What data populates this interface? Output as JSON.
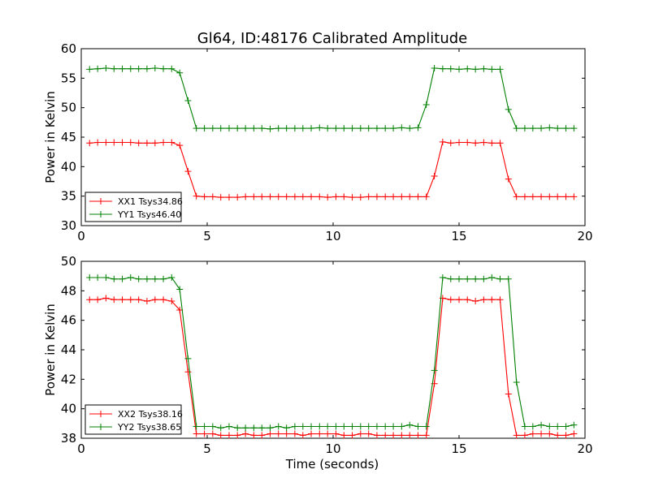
{
  "figure": {
    "title": "Gl64, ID:48176 Calibrated Amplitude",
    "xlabel": "Time (seconds)"
  },
  "chart_data": [
    {
      "type": "line",
      "title": "Gl64, ID:48176 Calibrated Amplitude",
      "xlabel": "",
      "ylabel": "Power in Kelvin",
      "xlim": [
        0,
        20
      ],
      "ylim": [
        30,
        60
      ],
      "xticks": [
        0,
        5,
        10,
        15,
        20
      ],
      "yticks": [
        30,
        35,
        40,
        45,
        50,
        55,
        60
      ],
      "grid": false,
      "legend_position": "lower-left",
      "x": [
        0.33,
        0.65,
        0.98,
        1.3,
        1.63,
        1.96,
        2.28,
        2.61,
        2.93,
        3.26,
        3.59,
        3.91,
        4.24,
        4.57,
        4.89,
        5.22,
        5.54,
        5.87,
        6.2,
        6.52,
        6.85,
        7.17,
        7.5,
        7.83,
        8.15,
        8.48,
        8.8,
        9.13,
        9.46,
        9.78,
        10.11,
        10.43,
        10.76,
        11.09,
        11.41,
        11.74,
        12.07,
        12.39,
        12.72,
        13.04,
        13.37,
        13.7,
        14.02,
        14.35,
        14.67,
        15.0,
        15.33,
        15.65,
        15.98,
        16.3,
        16.63,
        16.96,
        17.28,
        17.61,
        17.93,
        18.26,
        18.59,
        18.91,
        19.24,
        19.56
      ],
      "series": [
        {
          "name": "XX1 Tsys34.86",
          "color": "#ff0000",
          "values": [
            44.0,
            44.1,
            44.1,
            44.1,
            44.1,
            44.1,
            44.0,
            44.0,
            44.0,
            44.1,
            44.1,
            43.6,
            39.2,
            35.0,
            34.9,
            34.9,
            34.8,
            34.8,
            34.8,
            34.9,
            34.9,
            34.9,
            34.9,
            34.9,
            34.9,
            34.9,
            34.9,
            34.9,
            34.9,
            34.8,
            34.9,
            34.9,
            34.8,
            34.8,
            34.9,
            34.9,
            34.9,
            34.9,
            34.9,
            34.9,
            34.9,
            34.9,
            38.4,
            44.2,
            44.0,
            44.1,
            44.1,
            44.0,
            44.1,
            44.0,
            44.0,
            37.9,
            34.9,
            34.9,
            34.9,
            34.9,
            34.9,
            34.9,
            34.9,
            34.9
          ]
        },
        {
          "name": "YY1 Tsys46.40",
          "color": "#008000",
          "values": [
            56.5,
            56.6,
            56.7,
            56.6,
            56.6,
            56.6,
            56.6,
            56.6,
            56.7,
            56.6,
            56.6,
            55.9,
            51.2,
            46.5,
            46.5,
            46.5,
            46.5,
            46.5,
            46.5,
            46.5,
            46.5,
            46.5,
            46.4,
            46.5,
            46.5,
            46.5,
            46.5,
            46.5,
            46.6,
            46.5,
            46.5,
            46.5,
            46.5,
            46.5,
            46.5,
            46.5,
            46.5,
            46.5,
            46.6,
            46.5,
            46.6,
            50.5,
            56.7,
            56.6,
            56.6,
            56.5,
            56.6,
            56.5,
            56.6,
            56.5,
            56.5,
            49.7,
            46.5,
            46.5,
            46.5,
            46.5,
            46.6,
            46.5,
            46.5,
            46.5
          ]
        }
      ]
    },
    {
      "type": "line",
      "title": "",
      "xlabel": "Time (seconds)",
      "ylabel": "Power in Kelvin",
      "xlim": [
        0,
        20
      ],
      "ylim": [
        38,
        50
      ],
      "xticks": [
        0,
        5,
        10,
        15,
        20
      ],
      "yticks": [
        38,
        40,
        42,
        44,
        46,
        48,
        50
      ],
      "grid": false,
      "legend_position": "lower-left",
      "x": [
        0.33,
        0.65,
        0.98,
        1.3,
        1.63,
        1.96,
        2.28,
        2.61,
        2.93,
        3.26,
        3.59,
        3.91,
        4.24,
        4.57,
        4.89,
        5.22,
        5.54,
        5.87,
        6.2,
        6.52,
        6.85,
        7.17,
        7.5,
        7.83,
        8.15,
        8.48,
        8.8,
        9.13,
        9.46,
        9.78,
        10.11,
        10.43,
        10.76,
        11.09,
        11.41,
        11.74,
        12.07,
        12.39,
        12.72,
        13.04,
        13.37,
        13.7,
        14.02,
        14.35,
        14.67,
        15.0,
        15.33,
        15.65,
        15.98,
        16.3,
        16.63,
        16.96,
        17.28,
        17.61,
        17.93,
        18.26,
        18.59,
        18.91,
        19.24,
        19.56
      ],
      "series": [
        {
          "name": "XX2 Tsys38.16",
          "color": "#ff0000",
          "values": [
            47.4,
            47.4,
            47.5,
            47.4,
            47.4,
            47.4,
            47.4,
            47.3,
            47.4,
            47.4,
            47.3,
            46.7,
            42.5,
            38.3,
            38.3,
            38.3,
            38.2,
            38.2,
            38.2,
            38.3,
            38.2,
            38.2,
            38.3,
            38.3,
            38.3,
            38.3,
            38.2,
            38.3,
            38.3,
            38.3,
            38.3,
            38.2,
            38.2,
            38.3,
            38.3,
            38.2,
            38.2,
            38.2,
            38.2,
            38.2,
            38.2,
            38.2,
            41.7,
            47.5,
            47.4,
            47.4,
            47.4,
            47.3,
            47.4,
            47.4,
            47.4,
            41.0,
            38.2,
            38.2,
            38.3,
            38.3,
            38.3,
            38.2,
            38.2,
            38.3
          ]
        },
        {
          "name": "YY2 Tsys38.65",
          "color": "#008000",
          "values": [
            48.9,
            48.9,
            48.9,
            48.8,
            48.8,
            48.9,
            48.8,
            48.8,
            48.8,
            48.8,
            48.9,
            48.1,
            43.4,
            38.8,
            38.8,
            38.8,
            38.7,
            38.8,
            38.7,
            38.7,
            38.7,
            38.7,
            38.7,
            38.8,
            38.7,
            38.8,
            38.8,
            38.8,
            38.8,
            38.8,
            38.8,
            38.8,
            38.8,
            38.8,
            38.8,
            38.8,
            38.8,
            38.8,
            38.8,
            38.9,
            38.8,
            38.8,
            42.6,
            48.9,
            48.8,
            48.8,
            48.8,
            48.8,
            48.8,
            48.9,
            48.8,
            48.8,
            41.8,
            38.8,
            38.8,
            38.9,
            38.8,
            38.8,
            38.8,
            38.9
          ]
        }
      ]
    }
  ]
}
